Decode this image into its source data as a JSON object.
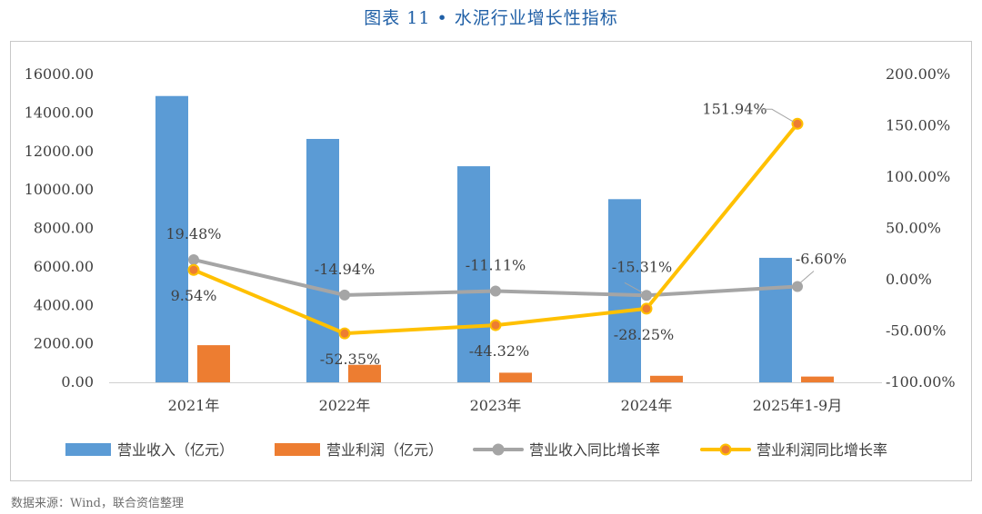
{
  "header": {
    "figure_title": "图表 11 •  水泥行业增长性指标"
  },
  "footer": {
    "source": "数据来源：Wind，联合资信整理"
  },
  "chart_data": {
    "type": "bar+line",
    "title": "水泥行业增长性指标",
    "categories": [
      "2021年",
      "2022年",
      "2023年",
      "2024年",
      "2025年1-9月"
    ],
    "left_axis": {
      "min": 0,
      "max": 16000,
      "step": 2000,
      "ticks": [
        "16000.00",
        "14000.00",
        "12000.00",
        "10000.00",
        "8000.00",
        "6000.00",
        "4000.00",
        "2000.00",
        "0.00"
      ]
    },
    "right_axis": {
      "min": -100,
      "max": 200,
      "step": 50,
      "ticks": [
        "200.00%",
        "150.00%",
        "100.00%",
        "50.00%",
        "0.00%",
        "-50.00%",
        "-100.00%"
      ]
    },
    "bar_series": [
      {
        "name": "营业收入（亿元）",
        "color": "#5b9bd5",
        "values": [
          14880,
          12650,
          11230,
          9520,
          6470
        ]
      },
      {
        "name": "营业利润（亿元）",
        "color": "#ed7d31",
        "values": [
          1930,
          910,
          500,
          340,
          300
        ]
      }
    ],
    "line_series": [
      {
        "name": "营业收入同比增长率",
        "color": "#a5a5a5",
        "values": [
          19.48,
          -14.94,
          -11.11,
          -15.31,
          -6.6
        ],
        "labels": [
          "19.48%",
          "-14.94%",
          "-11.11%",
          "-15.31%",
          "-6.60%"
        ]
      },
      {
        "name": "营业利润同比增长率",
        "color": "#ffc000",
        "values": [
          9.54,
          -52.35,
          -44.32,
          -28.25,
          151.94
        ],
        "labels": [
          "9.54%",
          "-52.35%",
          "-44.32%",
          "-28.25%",
          "151.94%"
        ]
      }
    ],
    "legend_position": "bottom",
    "grid": false
  }
}
